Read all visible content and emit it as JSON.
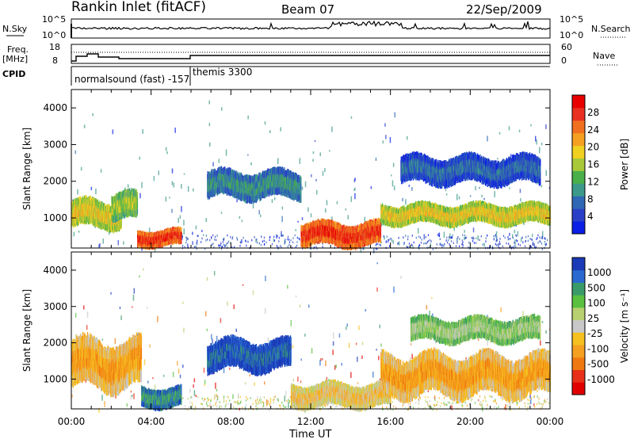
{
  "header": {
    "station": "Rankin Inlet (fitACF)",
    "beam": "Beam 07",
    "date": "22/Sep/2009"
  },
  "summary_panels": {
    "nsky_label": "N.Sky",
    "nsky_ticks": [
      "10^5",
      "10^0"
    ],
    "nsearch_label": "N.Search",
    "nsearch_ticks": [
      "10^5",
      "10^0"
    ],
    "freq_label": "Freq.",
    "freq_unit": "[MHz]",
    "freq_ticks": [
      "18",
      "8"
    ],
    "nave_label": "Nave",
    "nave_ticks": [
      "60",
      "0"
    ],
    "cpid_label": "CPID",
    "cpid_annotations": [
      "normalsound (fast) -157",
      "themis 3300"
    ]
  },
  "colors": {
    "power": [
      "#0a1ee6",
      "#2a3fc8",
      "#2f68b4",
      "#3c9a8a",
      "#4ab04a",
      "#a8c83a",
      "#f0d020",
      "#f5a020",
      "#f07020",
      "#e83020",
      "#e80000"
    ],
    "velocity": [
      "#1a3ab8",
      "#2a6ad0",
      "#3a9a6a",
      "#5ac040",
      "#b8d070",
      "#c8c8c8",
      "#f5c020",
      "#f5a020",
      "#f07810",
      "#e83018",
      "#e00000"
    ]
  },
  "chart_data": [
    {
      "type": "heatmap",
      "name": "Power",
      "ylabel": "Slant Range [km]",
      "xlabel": "",
      "ylim": [
        180,
        4500
      ],
      "yticks": [
        "1000",
        "2000",
        "3000",
        "4000"
      ],
      "xlim_ut_hours": [
        0,
        24
      ],
      "colorbar_label": "Power [dB]",
      "colorbar_ticks": [
        "28",
        "24",
        "20",
        "16",
        "12",
        "8",
        "4"
      ],
      "features": [
        {
          "start_h": 0.0,
          "end_h": 2.5,
          "range_km": [
            700,
            1500
          ],
          "level": 7
        },
        {
          "start_h": 2.0,
          "end_h": 3.3,
          "range_km": [
            900,
            1700
          ],
          "level": 6
        },
        {
          "start_h": 3.3,
          "end_h": 5.5,
          "range_km": [
            200,
            700
          ],
          "level": 10
        },
        {
          "start_h": 6.8,
          "end_h": 11.5,
          "range_km": [
            1500,
            2300
          ],
          "level": 4
        },
        {
          "start_h": 11.5,
          "end_h": 15.5,
          "range_km": [
            200,
            900
          ],
          "level": 10
        },
        {
          "start_h": 15.5,
          "end_h": 24.0,
          "range_km": [
            800,
            1400
          ],
          "level": 7
        },
        {
          "start_h": 16.5,
          "end_h": 23.5,
          "range_km": [
            1900,
            2700
          ],
          "level": 3
        }
      ]
    },
    {
      "type": "heatmap",
      "name": "Velocity",
      "ylabel": "Slant Range [km]",
      "xlabel": "Time UT",
      "ylim": [
        180,
        4500
      ],
      "yticks": [
        "1000",
        "2000",
        "3000",
        "4000"
      ],
      "xlim_ut_hours": [
        0,
        24
      ],
      "xticks": [
        "00:00",
        "04:00",
        "08:00",
        "12:00",
        "16:00",
        "20:00",
        "00:00"
      ],
      "colorbar_label": "Velocity [m s⁻¹]",
      "colorbar_ticks": [
        "1000",
        "500",
        "100",
        "25",
        "-25",
        "-100",
        "-500",
        "-1000"
      ],
      "features": [
        {
          "start_h": 0.0,
          "end_h": 3.5,
          "range_km": [
            700,
            2100
          ],
          "level": 8
        },
        {
          "start_h": 3.5,
          "end_h": 5.5,
          "range_km": [
            200,
            800
          ],
          "level": 3
        },
        {
          "start_h": 6.8,
          "end_h": 11.0,
          "range_km": [
            1200,
            2100
          ],
          "level": 2
        },
        {
          "start_h": 11.0,
          "end_h": 16.0,
          "range_km": [
            200,
            900
          ],
          "level": 7
        },
        {
          "start_h": 15.5,
          "end_h": 24.0,
          "range_km": [
            500,
            1700
          ],
          "level": 8
        },
        {
          "start_h": 17.0,
          "end_h": 23.5,
          "range_km": [
            2000,
            2700
          ],
          "level": 5
        }
      ]
    }
  ]
}
